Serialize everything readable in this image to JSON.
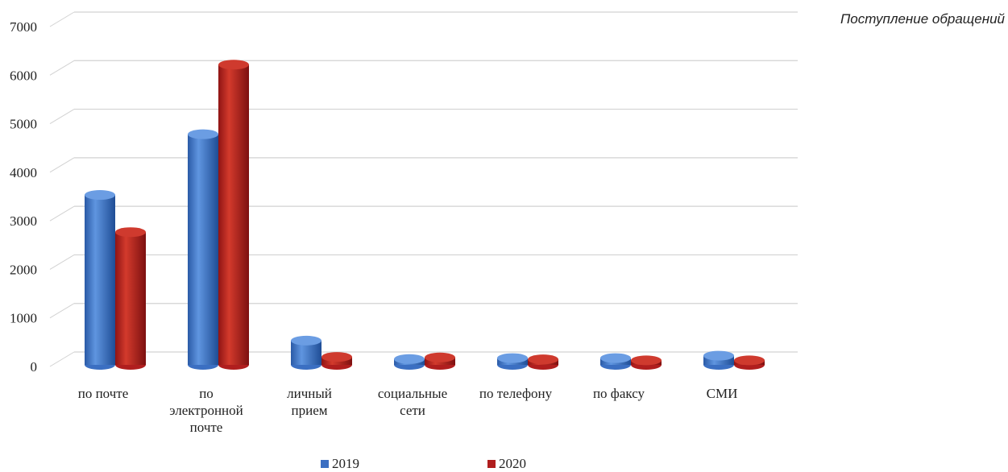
{
  "side_title": "Поступление обращений",
  "colors": {
    "s2019": "#3b6fc2",
    "s2020": "#b01e1e"
  },
  "chart_data": {
    "type": "bar",
    "title": "",
    "xlabel": "",
    "ylabel": "",
    "ylim": [
      0,
      7000
    ],
    "yticks": [
      "0",
      "1000",
      "2000",
      "3000",
      "4000",
      "5000",
      "6000",
      "7000"
    ],
    "categories": [
      [
        "по почте"
      ],
      [
        "по",
        "электронной",
        "почте"
      ],
      [
        "личный",
        "прием"
      ],
      [
        "социальные",
        "сети"
      ],
      [
        "по телефону"
      ],
      [
        "по факсу"
      ],
      [
        "СМИ"
      ]
    ],
    "series": [
      {
        "name": "2019",
        "values": [
          3400,
          4650,
          400,
          20,
          40,
          40,
          90
        ]
      },
      {
        "name": "2020",
        "values": [
          2700,
          6150,
          130,
          120,
          80,
          60,
          60
        ]
      }
    ],
    "legend": "bottom",
    "grid": true
  }
}
